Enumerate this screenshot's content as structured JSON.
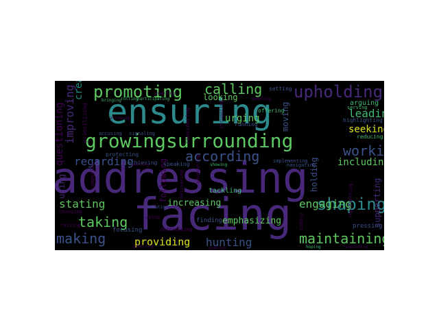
{
  "wordcloud": {
    "background": "#000000",
    "palette": {
      "yellow": "#dde318",
      "lightgreen": "#5ec962",
      "green": "#3fbc73",
      "teal": "#21918c",
      "cyan": "#2c8a8d",
      "blue": "#3b528b",
      "purple": "#482878",
      "darkpurple": "#440154"
    },
    "words": [
      {
        "text": "addressing",
        "color": "#482878"
      },
      {
        "text": "ensuring",
        "color": "#2c8a8d"
      },
      {
        "text": "facing",
        "color": "#482878"
      },
      {
        "text": "growingsurrounding",
        "color": "#5ec962"
      },
      {
        "text": "promoting",
        "color": "#5ec962"
      },
      {
        "text": "upholding",
        "color": "#482878"
      },
      {
        "text": "calling",
        "color": "#5ec962"
      },
      {
        "text": "according",
        "color": "#3b528b"
      },
      {
        "text": "working",
        "color": "#3b528b"
      },
      {
        "text": "shaping",
        "color": "#2c8a8d"
      },
      {
        "text": "maintaining",
        "color": "#5ec962"
      },
      {
        "text": "making",
        "color": "#3b528b"
      },
      {
        "text": "taking",
        "color": "#5ec962"
      },
      {
        "text": "stating",
        "color": "#5ec962"
      },
      {
        "text": "regarding",
        "color": "#3b528b"
      },
      {
        "text": "engaging",
        "color": "#5ec962"
      },
      {
        "text": "hunting",
        "color": "#3b528b"
      },
      {
        "text": "providing",
        "color": "#dde318"
      },
      {
        "text": "leading",
        "color": "#3fbc73"
      },
      {
        "text": "seeking",
        "color": "#dde318"
      },
      {
        "text": "including",
        "color": "#5ec962"
      },
      {
        "text": "emphasizing",
        "color": "#5ec962"
      },
      {
        "text": "increasing",
        "color": "#5ec962"
      },
      {
        "text": "creating",
        "color": "#21918c"
      },
      {
        "text": "improving",
        "color": "#482878"
      },
      {
        "text": "questioning",
        "color": "#440154"
      },
      {
        "text": "supporting",
        "color": "#482878"
      },
      {
        "text": "holding",
        "color": "#3b528b"
      },
      {
        "text": "urging",
        "color": "#5ec962"
      },
      {
        "text": "looking",
        "color": "#5ec962"
      },
      {
        "text": "moving",
        "color": "#3b528b"
      },
      {
        "text": "tackling",
        "color": "#3fbc73"
      },
      {
        "text": "following",
        "color": "#440154"
      },
      {
        "text": "using",
        "color": "#482878"
      },
      {
        "text": "arguing",
        "color": "#3fbc73"
      },
      {
        "text": "highlighting",
        "color": "#3b528b"
      },
      {
        "text": "pressing",
        "color": "#3b528b"
      },
      {
        "text": "finding",
        "color": "#3b528b"
      },
      {
        "text": "focusing",
        "color": "#3b528b"
      },
      {
        "text": "protecting",
        "color": "#3b528b"
      },
      {
        "text": "achieving",
        "color": "#3b528b"
      },
      {
        "text": "running",
        "color": "#3b528b"
      },
      {
        "text": "offering",
        "color": "#3fbc73"
      },
      {
        "text": "setting",
        "color": "#3b528b"
      },
      {
        "text": "reducing",
        "color": "#3fbc73"
      },
      {
        "text": "serving",
        "color": "#3fbc73"
      },
      {
        "text": "speaking",
        "color": "#3b528b"
      },
      {
        "text": "showing",
        "color": "#3fbc73"
      },
      {
        "text": "implementing",
        "color": "#3b528b"
      },
      {
        "text": "navigating",
        "color": "#3b528b"
      },
      {
        "text": "raising",
        "color": "#440154"
      },
      {
        "text": "changing",
        "color": "#440154"
      },
      {
        "text": "vying",
        "color": "#440154"
      },
      {
        "text": "gearing",
        "color": "#440154"
      },
      {
        "text": "signaling",
        "color": "#3b528b"
      },
      {
        "text": "accusing",
        "color": "#3b528b"
      },
      {
        "text": "prioritizing",
        "color": "#440154"
      },
      {
        "text": "considering",
        "color": "#440154"
      },
      {
        "text": "advocating",
        "color": "#440154"
      },
      {
        "text": "delivering",
        "color": "#440154"
      },
      {
        "text": "representing",
        "color": "#440154"
      },
      {
        "text": "determining",
        "color": "#440154"
      },
      {
        "text": "competing",
        "color": "#440154"
      },
      {
        "text": "combating",
        "color": "#3b528b"
      },
      {
        "text": "allowing",
        "color": "#440154"
      },
      {
        "text": "struggling",
        "color": "#440154"
      },
      {
        "text": "waiting",
        "color": "#440154"
      },
      {
        "text": "enabling",
        "color": "#440154"
      },
      {
        "text": "coming",
        "color": "#440154"
      },
      {
        "text": "bringing",
        "color": "#3fbc73"
      },
      {
        "text": "participating",
        "color": "#3fbc73"
      },
      {
        "text": "gambling",
        "color": "#440154"
      },
      {
        "text": "pushing",
        "color": "#440154"
      },
      {
        "text": "responding",
        "color": "#440154"
      },
      {
        "text": "hoping",
        "color": "#3fbc73"
      },
      {
        "text": "rolling",
        "color": "#3fbc73"
      }
    ]
  }
}
